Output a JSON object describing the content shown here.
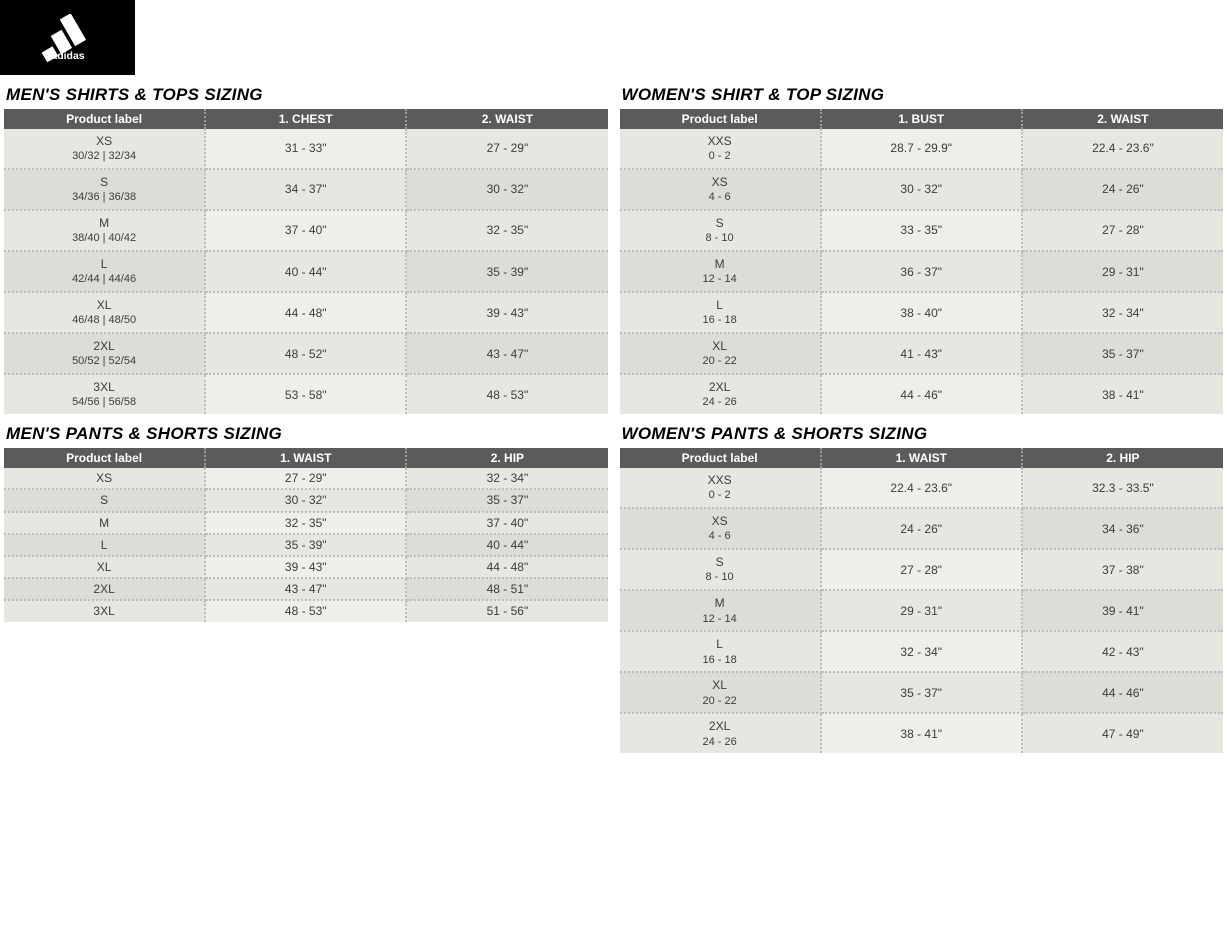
{
  "brand": "adidas",
  "tables": {
    "mens_tops": {
      "title": "MEN'S SHIRTS & TOPS SIZING",
      "headers": [
        "Product label",
        "1. CHEST",
        "2. WAIST"
      ],
      "col_widths": [
        "33.3%",
        "33.3%",
        "33.3%"
      ],
      "rows": [
        {
          "label": "XS",
          "sub": "30/32 | 32/34",
          "c1": "31 - 33\"",
          "c2": "27 - 29\""
        },
        {
          "label": "S",
          "sub": "34/36 | 36/38",
          "c1": "34 - 37\"",
          "c2": "30 - 32\""
        },
        {
          "label": "M",
          "sub": "38/40 | 40/42",
          "c1": "37 - 40\"",
          "c2": "32 - 35\""
        },
        {
          "label": "L",
          "sub": "42/44 | 44/46",
          "c1": "40 - 44\"",
          "c2": "35 - 39\""
        },
        {
          "label": "XL",
          "sub": "46/48 | 48/50",
          "c1": "44 - 48\"",
          "c2": "39 - 43\""
        },
        {
          "label": "2XL",
          "sub": "50/52 | 52/54",
          "c1": "48 - 52\"",
          "c2": "43 - 47\""
        },
        {
          "label": "3XL",
          "sub": "54/56 | 56/58",
          "c1": "53 - 58\"",
          "c2": "48 - 53\""
        }
      ]
    },
    "womens_tops": {
      "title": "WOMEN'S SHIRT & TOP SIZING",
      "headers": [
        "Product label",
        "1. BUST",
        "2. WAIST"
      ],
      "col_widths": [
        "33.3%",
        "33.3%",
        "33.3%"
      ],
      "rows": [
        {
          "label": "XXS",
          "sub": "0 - 2",
          "c1": "28.7 - 29.9\"",
          "c2": "22.4 - 23.6\""
        },
        {
          "label": "XS",
          "sub": "4 - 6",
          "c1": "30 - 32\"",
          "c2": "24 - 26\""
        },
        {
          "label": "S",
          "sub": "8 - 10",
          "c1": "33 - 35\"",
          "c2": "27 - 28\""
        },
        {
          "label": "M",
          "sub": "12 - 14",
          "c1": "36 - 37\"",
          "c2": "29 - 31\""
        },
        {
          "label": "L",
          "sub": "16 - 18",
          "c1": "38 - 40\"",
          "c2": "32 - 34\""
        },
        {
          "label": "XL",
          "sub": "20 - 22",
          "c1": "41 - 43\"",
          "c2": "35 - 37\""
        },
        {
          "label": "2XL",
          "sub": "24 - 26",
          "c1": "44 - 46\"",
          "c2": "38 - 41\""
        }
      ]
    },
    "mens_pants": {
      "title": "MEN'S PANTS & SHORTS SIZING",
      "headers": [
        "Product label",
        "1. WAIST",
        "2. HIP"
      ],
      "col_widths": [
        "33.3%",
        "33.3%",
        "33.3%"
      ],
      "compact": true,
      "rows": [
        {
          "label": "XS",
          "c1": "27 - 29\"",
          "c2": "32 - 34\""
        },
        {
          "label": "S",
          "c1": "30 - 32\"",
          "c2": "35 - 37\""
        },
        {
          "label": "M",
          "c1": "32 - 35\"",
          "c2": "37 - 40\""
        },
        {
          "label": "L",
          "c1": "35 - 39\"",
          "c2": "40 - 44\""
        },
        {
          "label": "XL",
          "c1": "39 - 43\"",
          "c2": "44 - 48\""
        },
        {
          "label": "2XL",
          "c1": "43 - 47\"",
          "c2": "48 - 51\""
        },
        {
          "label": "3XL",
          "c1": "48 - 53\"",
          "c2": "51 - 56\""
        }
      ]
    },
    "womens_pants": {
      "title": "WOMEN'S PANTS & SHORTS SIZING",
      "headers": [
        "Product label",
        "1. WAIST",
        "2. HIP"
      ],
      "col_widths": [
        "33.3%",
        "33.3%",
        "33.3%"
      ],
      "rows": [
        {
          "label": "XXS",
          "sub": "0 - 2",
          "c1": "22.4 - 23.6\"",
          "c2": "32.3 - 33.5\""
        },
        {
          "label": "XS",
          "sub": "4 - 6",
          "c1": "24 - 26\"",
          "c2": "34 - 36\""
        },
        {
          "label": "S",
          "sub": "8 - 10",
          "c1": "27 - 28\"",
          "c2": "37 - 38\""
        },
        {
          "label": "M",
          "sub": "12 - 14",
          "c1": "29 - 31\"",
          "c2": "39 - 41\""
        },
        {
          "label": "L",
          "sub": "16 - 18",
          "c1": "32 - 34\"",
          "c2": "42 - 43\""
        },
        {
          "label": "XL",
          "sub": "20 - 22",
          "c1": "35 - 37\"",
          "c2": "44 - 46\""
        },
        {
          "label": "2XL",
          "sub": "24 - 26",
          "c1": "38 - 41\"",
          "c2": "47 - 49\""
        }
      ]
    }
  },
  "colors": {
    "header_bg": "#5b5b5b",
    "header_text": "#ffffff",
    "stripe_a": "#e7e6e1",
    "stripe_b": "#dedcd7",
    "stripe_c": "#efeeeb",
    "border_dotted": "#bdbdbd",
    "title_text": "#000000",
    "cell_text": "#3c3c3c",
    "logo_bg": "#000000"
  },
  "typography": {
    "title_fontsize": 17,
    "title_weight": 900,
    "title_style": "italic",
    "header_fontsize": 12,
    "cell_fontsize": 12,
    "sub_fontsize": 11,
    "font_family": "Arial"
  }
}
